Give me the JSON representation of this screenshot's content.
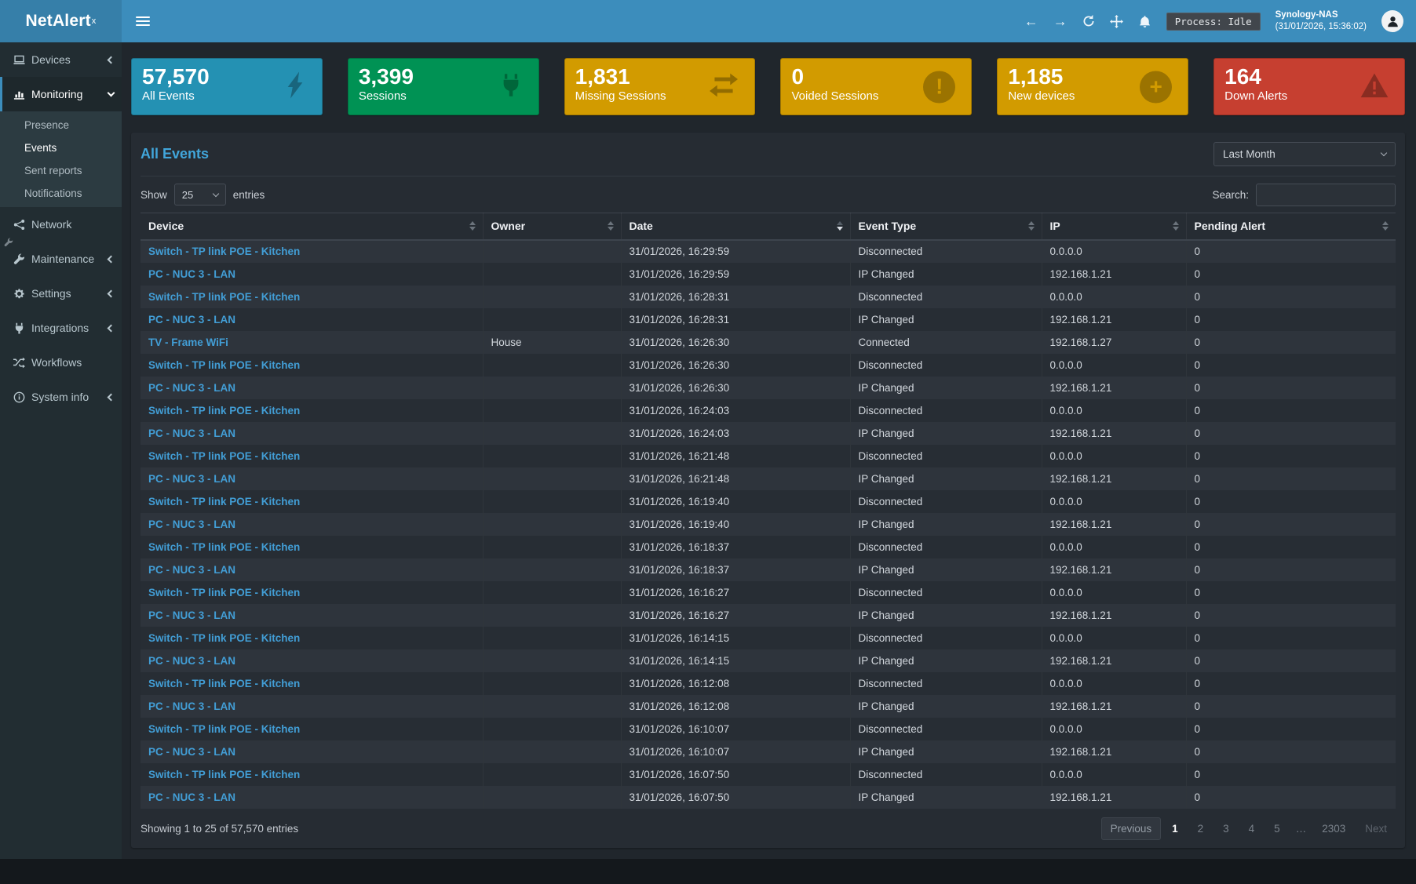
{
  "header": {
    "brand_light": "Net",
    "brand_bold": "Alert",
    "brand_sup": "x",
    "process_badge": "Process: Idle",
    "host_name": "Synology-NAS",
    "host_time": "(31/01/2026, 15:36:02)",
    "nav_icons": [
      "back-icon",
      "forward-icon",
      "refresh-icon",
      "move-icon",
      "bell-icon"
    ]
  },
  "sidebar": {
    "items": [
      {
        "label": "Devices",
        "icon": "laptop-icon",
        "chevron": "left",
        "active": false
      },
      {
        "label": "Monitoring",
        "icon": "chart-bar-icon",
        "chevron": "down",
        "active": true,
        "children": [
          "Presence",
          "Events",
          "Sent reports",
          "Notifications"
        ],
        "current_child": "Events"
      },
      {
        "label": "Network",
        "icon": "network-icon",
        "chevron": "",
        "active": false
      },
      {
        "label": "Maintenance",
        "icon": "wrench-icon",
        "chevron": "left",
        "active": false
      },
      {
        "label": "Settings",
        "icon": "gear-icon",
        "chevron": "left",
        "active": false
      },
      {
        "label": "Integrations",
        "icon": "plug-icon",
        "chevron": "left",
        "active": false
      },
      {
        "label": "Workflows",
        "icon": "shuffle-icon",
        "chevron": "",
        "active": false
      },
      {
        "label": "System info",
        "icon": "info-icon",
        "chevron": "left",
        "active": false
      }
    ]
  },
  "cards": [
    {
      "value": "57,570",
      "label": "All Events",
      "color": "#2491b3",
      "icon": "bolt-icon"
    },
    {
      "value": "3,399",
      "label": "Sessions",
      "color": "#009254",
      "icon": "plug-icon"
    },
    {
      "value": "1,831",
      "label": "Missing Sessions",
      "color": "#d29b00",
      "icon": "exchange-icon"
    },
    {
      "value": "0",
      "label": "Voided Sessions",
      "color": "#d29b00",
      "icon": "exclamation-circle-icon"
    },
    {
      "value": "1,185",
      "label": "New devices",
      "color": "#d29b00",
      "icon": "plus-circle-icon"
    },
    {
      "value": "164",
      "label": "Down Alerts",
      "color": "#c63f30",
      "icon": "warning-icon"
    }
  ],
  "events": {
    "title": "All Events",
    "period_selected": "Last Month",
    "show_label": "Show",
    "page_length": "25",
    "entries_label": "entries",
    "search_label": "Search:",
    "search_value": "",
    "columns": [
      {
        "label": "Device",
        "sort": "both"
      },
      {
        "label": "Owner",
        "sort": "both"
      },
      {
        "label": "Date",
        "sort": "desc"
      },
      {
        "label": "Event Type",
        "sort": "both"
      },
      {
        "label": "IP",
        "sort": "both"
      },
      {
        "label": "Pending Alert",
        "sort": "both"
      }
    ],
    "rows": [
      [
        "Switch - TP link POE - Kitchen",
        "",
        "31/01/2026, 16:29:59",
        "Disconnected",
        "0.0.0.0",
        "0"
      ],
      [
        "PC - NUC 3 - LAN",
        "",
        "31/01/2026, 16:29:59",
        "IP Changed",
        "192.168.1.21",
        "0"
      ],
      [
        "Switch - TP link POE - Kitchen",
        "",
        "31/01/2026, 16:28:31",
        "Disconnected",
        "0.0.0.0",
        "0"
      ],
      [
        "PC - NUC 3 - LAN",
        "",
        "31/01/2026, 16:28:31",
        "IP Changed",
        "192.168.1.21",
        "0"
      ],
      [
        "TV - Frame WiFi",
        "House",
        "31/01/2026, 16:26:30",
        "Connected",
        "192.168.1.27",
        "0"
      ],
      [
        "Switch - TP link POE - Kitchen",
        "",
        "31/01/2026, 16:26:30",
        "Disconnected",
        "0.0.0.0",
        "0"
      ],
      [
        "PC - NUC 3 - LAN",
        "",
        "31/01/2026, 16:26:30",
        "IP Changed",
        "192.168.1.21",
        "0"
      ],
      [
        "Switch - TP link POE - Kitchen",
        "",
        "31/01/2026, 16:24:03",
        "Disconnected",
        "0.0.0.0",
        "0"
      ],
      [
        "PC - NUC 3 - LAN",
        "",
        "31/01/2026, 16:24:03",
        "IP Changed",
        "192.168.1.21",
        "0"
      ],
      [
        "Switch - TP link POE - Kitchen",
        "",
        "31/01/2026, 16:21:48",
        "Disconnected",
        "0.0.0.0",
        "0"
      ],
      [
        "PC - NUC 3 - LAN",
        "",
        "31/01/2026, 16:21:48",
        "IP Changed",
        "192.168.1.21",
        "0"
      ],
      [
        "Switch - TP link POE - Kitchen",
        "",
        "31/01/2026, 16:19:40",
        "Disconnected",
        "0.0.0.0",
        "0"
      ],
      [
        "PC - NUC 3 - LAN",
        "",
        "31/01/2026, 16:19:40",
        "IP Changed",
        "192.168.1.21",
        "0"
      ],
      [
        "Switch - TP link POE - Kitchen",
        "",
        "31/01/2026, 16:18:37",
        "Disconnected",
        "0.0.0.0",
        "0"
      ],
      [
        "PC - NUC 3 - LAN",
        "",
        "31/01/2026, 16:18:37",
        "IP Changed",
        "192.168.1.21",
        "0"
      ],
      [
        "Switch - TP link POE - Kitchen",
        "",
        "31/01/2026, 16:16:27",
        "Disconnected",
        "0.0.0.0",
        "0"
      ],
      [
        "PC - NUC 3 - LAN",
        "",
        "31/01/2026, 16:16:27",
        "IP Changed",
        "192.168.1.21",
        "0"
      ],
      [
        "Switch - TP link POE - Kitchen",
        "",
        "31/01/2026, 16:14:15",
        "Disconnected",
        "0.0.0.0",
        "0"
      ],
      [
        "PC - NUC 3 - LAN",
        "",
        "31/01/2026, 16:14:15",
        "IP Changed",
        "192.168.1.21",
        "0"
      ],
      [
        "Switch - TP link POE - Kitchen",
        "",
        "31/01/2026, 16:12:08",
        "Disconnected",
        "0.0.0.0",
        "0"
      ],
      [
        "PC - NUC 3 - LAN",
        "",
        "31/01/2026, 16:12:08",
        "IP Changed",
        "192.168.1.21",
        "0"
      ],
      [
        "Switch - TP link POE - Kitchen",
        "",
        "31/01/2026, 16:10:07",
        "Disconnected",
        "0.0.0.0",
        "0"
      ],
      [
        "PC - NUC 3 - LAN",
        "",
        "31/01/2026, 16:10:07",
        "IP Changed",
        "192.168.1.21",
        "0"
      ],
      [
        "Switch - TP link POE - Kitchen",
        "",
        "31/01/2026, 16:07:50",
        "Disconnected",
        "0.0.0.0",
        "0"
      ],
      [
        "PC - NUC 3 - LAN",
        "",
        "31/01/2026, 16:07:50",
        "IP Changed",
        "192.168.1.21",
        "0"
      ]
    ],
    "footer_text": "Showing 1 to 25 of 57,570 entries",
    "pagination": {
      "previous": "Previous",
      "pages": [
        "1",
        "2",
        "3",
        "4",
        "5"
      ],
      "active_page": "1",
      "ellipsis": "…",
      "last_page": "2303",
      "next": "Next"
    }
  }
}
